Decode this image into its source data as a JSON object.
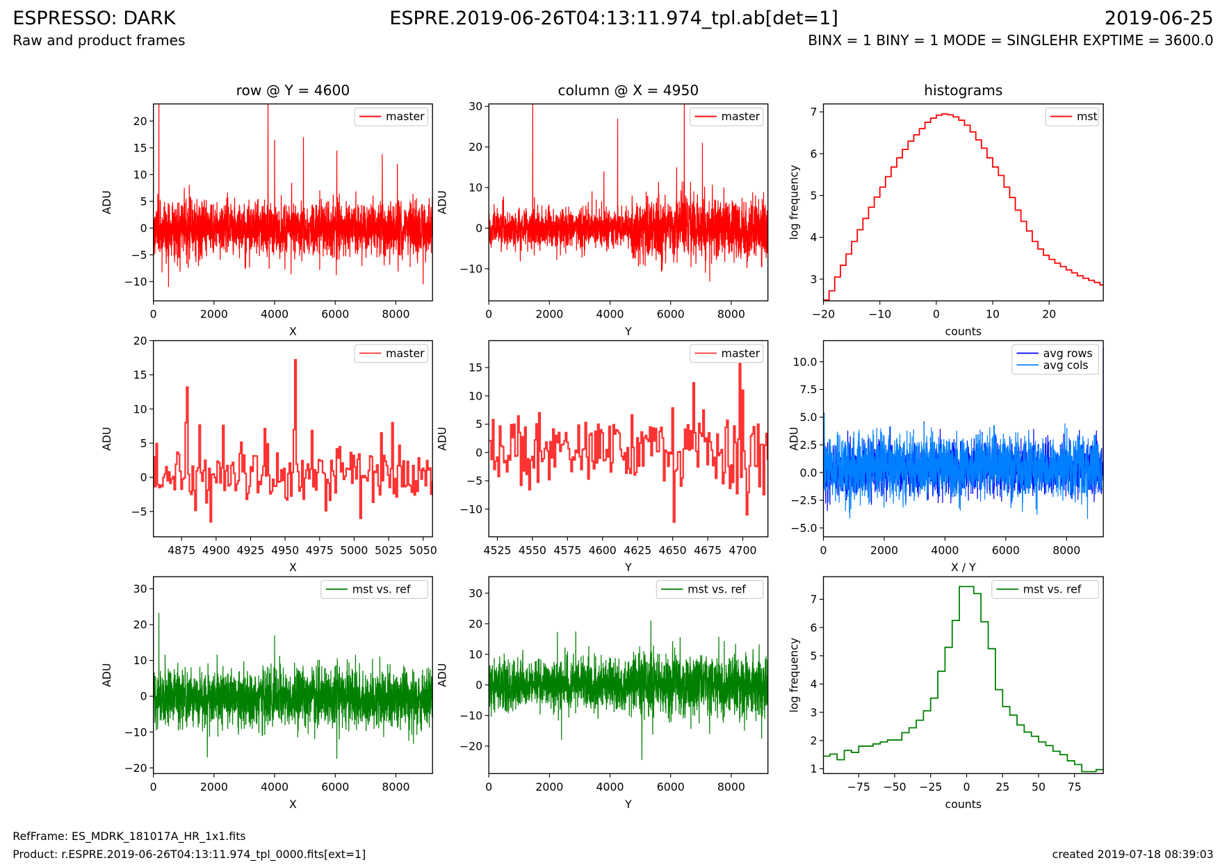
{
  "header": {
    "left_title": "ESPRESSO: DARK",
    "center_title": "ESPRE.2019-06-26T04:13:11.974_tpl.ab[det=1]",
    "right_title": "2019-06-25",
    "subtitle": "Raw and product frames",
    "params": "BINX = 1 BINY = 1 MODE = SINGLEHR EXPTIME = 3600.0"
  },
  "footer": {
    "ref_frame": "RefFrame: ES_MDRK_181017A_HR_1x1.fits",
    "product": "Product: r.ESPRE.2019-06-26T04:13:11.974_tpl_0000.fits[ext=1]",
    "created": "created 2019-07-18 08:39:03"
  },
  "chart_data": [
    {
      "type": "line",
      "title": "row @ Y = 4600",
      "xlabel": "X",
      "ylabel": "ADU",
      "xlim": [
        0,
        9210
      ],
      "ylim": [
        -13.6,
        23.2
      ],
      "xticks": [
        "0",
        "2000",
        "4000",
        "6000",
        "8000"
      ],
      "yticks": [
        "−10",
        "−5",
        "0",
        "5",
        "10",
        "15",
        "20"
      ],
      "series": [
        {
          "name": "master",
          "color": "#ff0000",
          "kind": "noise",
          "n": 2200,
          "x0": 0,
          "x1": 9210,
          "mean": 0,
          "sigma": [
            [
              0,
              9210,
              2.6
            ]
          ],
          "spikes": [
            [
              180,
              24
            ],
            [
              3780,
              24
            ],
            [
              4000,
              16.5
            ],
            [
              4950,
              17
            ],
            [
              6050,
              14.5
            ],
            [
              7550,
              13.8
            ],
            [
              8050,
              12
            ],
            [
              500,
              -11
            ],
            [
              8900,
              -10.5
            ]
          ]
        }
      ]
    },
    {
      "type": "line",
      "title": "column @ X = 4950",
      "xlabel": "Y",
      "ylabel": "ADU",
      "xlim": [
        0,
        9210
      ],
      "ylim": [
        -17.9,
        30.6
      ],
      "xticks": [
        "0",
        "2000",
        "4000",
        "6000",
        "8000"
      ],
      "yticks": [
        "−10",
        "0",
        "10",
        "20",
        "30"
      ],
      "series": [
        {
          "name": "master",
          "color": "#ff0000",
          "kind": "noise",
          "n": 2200,
          "x0": 0,
          "x1": 9210,
          "mean": 0,
          "sigma": [
            [
              0,
              4700,
              2.4
            ],
            [
              4700,
              9210,
              3.6
            ]
          ],
          "spikes": [
            [
              1450,
              31
            ],
            [
              4250,
              27
            ],
            [
              6450,
              31
            ],
            [
              7050,
              21
            ],
            [
              6200,
              15
            ],
            [
              3800,
              14
            ]
          ]
        }
      ]
    },
    {
      "type": "step",
      "title": "histograms",
      "xlabel": "counts",
      "ylabel": "log frequency",
      "xlim": [
        -20,
        29.6
      ],
      "ylim": [
        2.48,
        7.19
      ],
      "xticks": [
        "−20",
        "−10",
        "0",
        "10",
        "20"
      ],
      "yticks": [
        "3",
        "4",
        "5",
        "6",
        "7"
      ],
      "series": [
        {
          "name": "mst",
          "color": "#ff0000",
          "kind": "hist",
          "edge0": -20,
          "width": 1,
          "values": [
            2.5,
            2.72,
            3.05,
            3.33,
            3.6,
            3.9,
            4.18,
            4.45,
            4.72,
            4.96,
            5.2,
            5.45,
            5.68,
            5.9,
            6.1,
            6.3,
            6.45,
            6.6,
            6.75,
            6.85,
            6.92,
            6.95,
            6.93,
            6.88,
            6.8,
            6.68,
            6.52,
            6.33,
            6.13,
            5.9,
            5.68,
            5.48,
            5.2,
            4.95,
            4.65,
            4.38,
            4.15,
            3.9,
            3.72,
            3.57,
            3.47,
            3.38,
            3.3,
            3.22,
            3.15,
            3.08,
            3.02,
            2.97,
            2.92,
            2.86
          ]
        }
      ]
    },
    {
      "type": "step",
      "title": "",
      "xlabel": "X",
      "ylabel": "ADU",
      "xlim": [
        4854.6,
        5056.8
      ],
      "ylim": [
        -8.7,
        20
      ],
      "xticks": [
        "4875",
        "4900",
        "4925",
        "4950",
        "4975",
        "5000",
        "5025",
        "5050"
      ],
      "yticks": [
        "−5",
        "0",
        "5",
        "10",
        "15",
        "20"
      ],
      "series": [
        {
          "name": "master",
          "color": "#ff3333",
          "kind": "noise",
          "n": 202,
          "x0": 4855,
          "x1": 5057,
          "mean": 0.3,
          "sigma": [
            [
              4855,
              5057,
              2.3
            ]
          ],
          "spikes": [
            [
              4879,
              13.2
            ],
            [
              4878,
              8
            ],
            [
              4896,
              -6.5
            ],
            [
              4958,
              17.2
            ],
            [
              4957,
              7
            ],
            [
              5005,
              -6
            ],
            [
              5028,
              8
            ],
            [
              5020,
              6.5
            ]
          ]
        }
      ]
    },
    {
      "type": "step",
      "title": "",
      "xlabel": "Y",
      "ylabel": "ADU",
      "xlim": [
        4518.9,
        4717.9
      ],
      "ylim": [
        -14.9,
        19.75
      ],
      "xticks": [
        "4525",
        "4550",
        "4575",
        "4600",
        "4625",
        "4650",
        "4675",
        "4700"
      ],
      "yticks": [
        "−10",
        "−5",
        "0",
        "5",
        "10",
        "15"
      ],
      "series": [
        {
          "name": "master",
          "color": "#ff3333",
          "kind": "noise",
          "n": 200,
          "x0": 4519,
          "x1": 4718,
          "mean": 0.3,
          "sigma": [
            [
              4519,
              4620,
              2.8
            ],
            [
              4620,
              4718,
              4
            ]
          ],
          "spikes": [
            [
              4651,
              -12.3
            ],
            [
              4665,
              12.3
            ],
            [
              4700,
              11
            ],
            [
              4703,
              -11
            ],
            [
              4542,
              -5.8
            ],
            [
              4555,
              7
            ]
          ]
        }
      ]
    },
    {
      "type": "line",
      "title": "",
      "xlabel": "X / Y",
      "ylabel": "ADU",
      "xlim": [
        0,
        9210
      ],
      "ylim": [
        -5.8,
        11.9
      ],
      "xticks": [
        "0",
        "2000",
        "4000",
        "6000",
        "8000"
      ],
      "yticks": [
        "−5.0",
        "−2.5",
        "0.0",
        "2.5",
        "5.0",
        "7.5",
        "10.0"
      ],
      "series": [
        {
          "name": "avg rows",
          "color": "#0000ff",
          "kind": "noise",
          "n": 2200,
          "x0": 0,
          "x1": 9210,
          "mean": 0.4,
          "sigma": [
            [
              0,
              9210,
              1.1
            ]
          ],
          "spikes": [
            [
              9205,
              11.3
            ]
          ]
        },
        {
          "name": "avg cols",
          "color": "#0080ff",
          "kind": "noise",
          "n": 2200,
          "x0": 0,
          "x1": 9160,
          "mean": 0.5,
          "sigma": [
            [
              0,
              9160,
              1.35
            ]
          ],
          "spikes": [
            [
              30,
              5.4
            ]
          ]
        }
      ]
    },
    {
      "type": "line",
      "title": "",
      "xlabel": "X",
      "ylabel": "ADU",
      "xlim": [
        0,
        9210
      ],
      "ylim": [
        -21.6,
        33.4
      ],
      "xticks": [
        "0",
        "2000",
        "4000",
        "6000",
        "8000"
      ],
      "yticks": [
        "−20",
        "−10",
        "0",
        "10",
        "20",
        "30"
      ],
      "series": [
        {
          "name": "mst vs. ref",
          "color": "#008000",
          "kind": "noise",
          "n": 2200,
          "x0": 0,
          "x1": 9210,
          "mean": -0.5,
          "sigma": [
            [
              0,
              9210,
              4
            ]
          ],
          "spikes": [
            [
              180,
              23.3
            ],
            [
              6050,
              -17.5
            ],
            [
              4000,
              17
            ]
          ]
        }
      ]
    },
    {
      "type": "line",
      "title": "",
      "xlabel": "Y",
      "ylabel": "ADU",
      "xlim": [
        0,
        9210
      ],
      "ylim": [
        -29,
        35.4
      ],
      "xticks": [
        "0",
        "2000",
        "4000",
        "6000",
        "8000"
      ],
      "yticks": [
        "−20",
        "−10",
        "0",
        "10",
        "20",
        "30"
      ],
      "series": [
        {
          "name": "mst vs. ref",
          "color": "#008000",
          "kind": "noise",
          "n": 2200,
          "x0": 0,
          "x1": 9210,
          "mean": 0,
          "sigma": [
            [
              0,
              4700,
              4
            ],
            [
              4700,
              9210,
              5.2
            ]
          ],
          "spikes": [
            [
              2870,
              17.5
            ],
            [
              5050,
              -24.5
            ],
            [
              5350,
              21
            ],
            [
              2400,
              -18
            ]
          ]
        }
      ]
    },
    {
      "type": "step",
      "title": "",
      "xlabel": "counts",
      "ylabel": "log frequency",
      "xlim": [
        -99.5,
        95
      ],
      "ylim": [
        0.83,
        7.8
      ],
      "xticks": [
        "−75",
        "−50",
        "−25",
        "0",
        "25",
        "50",
        "75"
      ],
      "yticks": [
        "1",
        "2",
        "3",
        "4",
        "5",
        "6",
        "7"
      ],
      "series": [
        {
          "name": "mst vs. ref",
          "color": "#008000",
          "kind": "hist",
          "edge0": -100,
          "width": 5,
          "values": [
            1.45,
            1.52,
            1.32,
            1.65,
            1.58,
            1.8,
            1.8,
            1.88,
            1.95,
            2.02,
            2.02,
            2.28,
            2.45,
            2.72,
            3.05,
            3.5,
            4.45,
            5.3,
            6.25,
            7.45,
            7.45,
            7.2,
            6.2,
            5.25,
            3.8,
            3.2,
            2.9,
            2.55,
            2.3,
            2.15,
            1.95,
            1.82,
            1.62,
            1.5,
            1.28,
            1.15,
            0.9,
            0.9,
            0.97
          ]
        }
      ]
    }
  ]
}
